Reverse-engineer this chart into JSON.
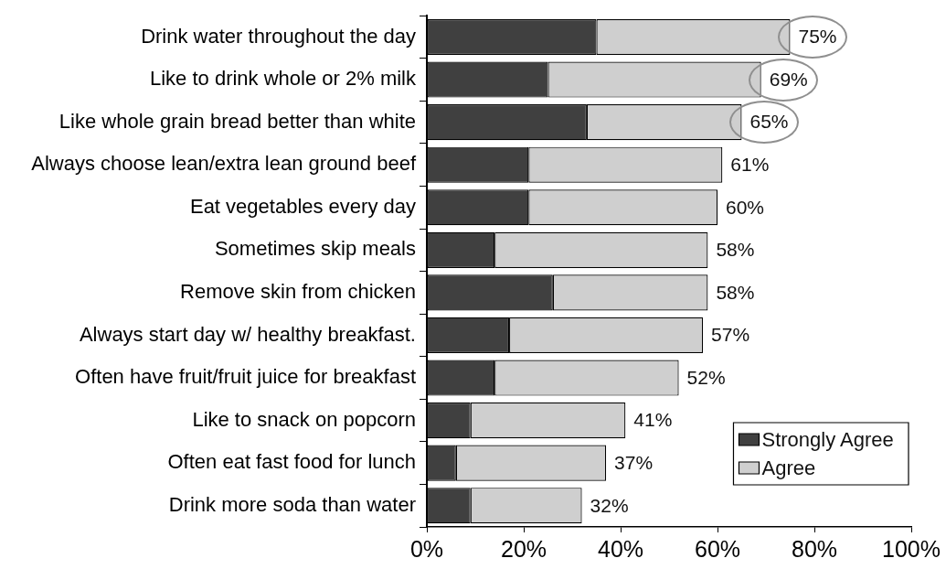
{
  "chart_data": {
    "type": "bar",
    "orientation": "horizontal",
    "stacked": true,
    "categories": [
      "Drink water throughout the day",
      "Like to drink whole or 2% milk",
      "Like whole grain bread better than white",
      "Always choose lean/extra lean ground beef",
      "Eat vegetables every day",
      "Sometimes skip meals",
      "Remove skin from chicken",
      "Always start day w/ healthy breakfast.",
      "Often have fruit/fruit juice for breakfast",
      "Like to snack on popcorn",
      "Often eat fast food for lunch",
      "Drink more soda than water"
    ],
    "series": [
      {
        "name": "Strongly Agree",
        "color": "#404040",
        "values": [
          35,
          25,
          33,
          21,
          21,
          14,
          26,
          17,
          14,
          9,
          6,
          9
        ]
      },
      {
        "name": "Agree",
        "color": "#cfcfcf",
        "values": [
          40,
          44,
          32,
          40,
          39,
          44,
          32,
          40,
          38,
          32,
          31,
          23
        ]
      }
    ],
    "totals": [
      "75%",
      "69%",
      "65%",
      "61%",
      "60%",
      "58%",
      "58%",
      "57%",
      "52%",
      "41%",
      "37%",
      "32%"
    ],
    "xlim": [
      0,
      100
    ],
    "xticks": [
      {
        "value": 0,
        "label": "0%"
      },
      {
        "value": 20,
        "label": "20%"
      },
      {
        "value": 40,
        "label": "40%"
      },
      {
        "value": 60,
        "label": "60%"
      },
      {
        "value": 80,
        "label": "80%"
      },
      {
        "value": 100,
        "label": "100%"
      }
    ],
    "legend": "bottom right",
    "grid": false
  }
}
